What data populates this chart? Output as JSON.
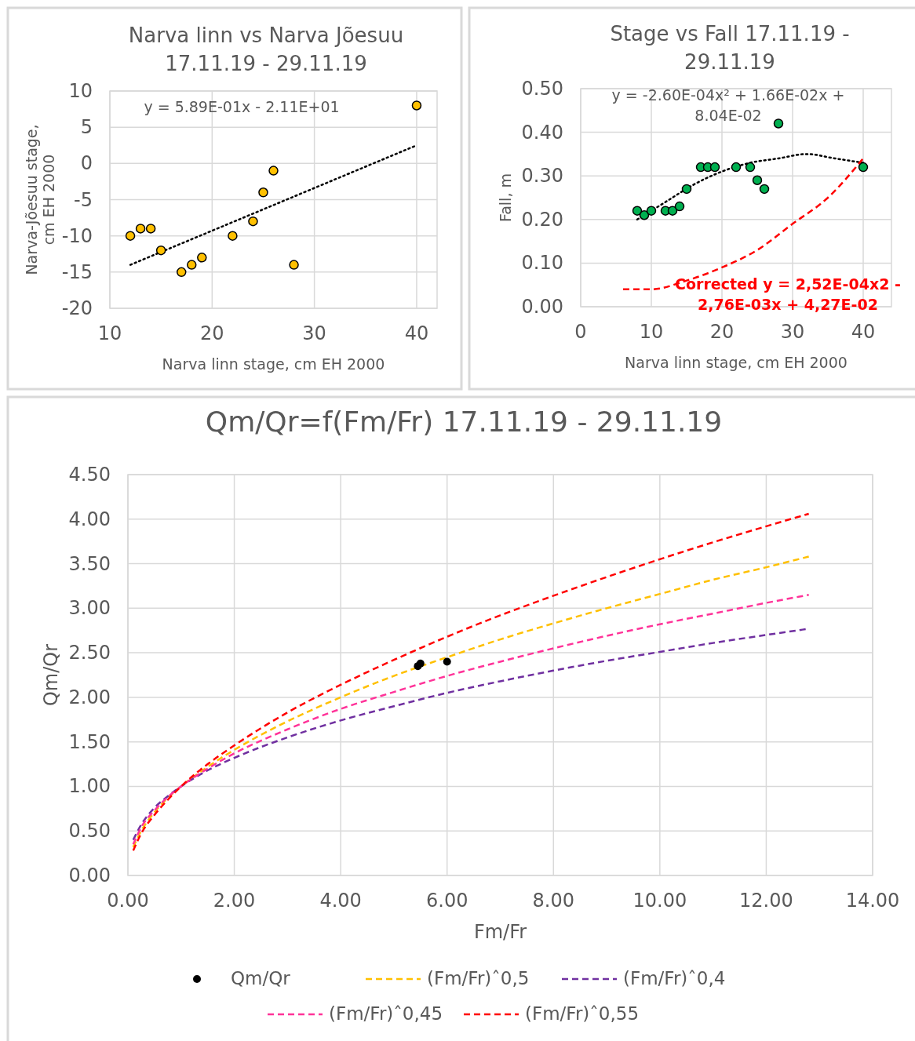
{
  "chart_data": [
    {
      "type": "scatter",
      "title": "Narva linn vs Narva Jõesuu 17.11.19 - 29.11.19",
      "xlabel": "Narva linn stage, cm EH 2000",
      "ylabel": "Narva-Jõesuu stage, cm EH 2000",
      "xlim": [
        10,
        42
      ],
      "xticks": [
        10,
        20,
        30,
        40
      ],
      "ylim": [
        -20,
        10
      ],
      "yticks": [
        -20,
        -15,
        -10,
        -5,
        0,
        5,
        10
      ],
      "grid": true,
      "annotations": [
        "y = 5.89E-01x - 2.11E+01"
      ],
      "series": [
        {
          "color": "#ffc000",
          "marker": "circle",
          "x": [
            12,
            13,
            14,
            15,
            17,
            18,
            19,
            22,
            24,
            25,
            26,
            28,
            40
          ],
          "values": [
            -10,
            -9,
            -9,
            -12,
            -15,
            -14,
            -13,
            -10,
            -8,
            -4,
            -1,
            -14,
            8
          ]
        },
        {
          "type": "line",
          "color": "#000000",
          "line_style": "dotted",
          "x": [
            12,
            40
          ],
          "values": [
            -14,
            2.5
          ]
        }
      ]
    },
    {
      "type": "scatter",
      "title": "Stage vs Fall 17.11.19 - 29.11.19",
      "xlabel": "Narva linn stage, cm EH 2000",
      "ylabel": "Fall, m",
      "xlim": [
        0,
        44
      ],
      "xticks": [
        0,
        10,
        20,
        30,
        40
      ],
      "ylim": [
        0,
        0.5
      ],
      "yticks": [
        {
          "value": 0,
          "label": "0.00"
        },
        {
          "value": 0.1,
          "label": "0.10"
        },
        {
          "value": 0.2,
          "label": "0.20"
        },
        {
          "value": 0.3,
          "label": "0.30"
        },
        {
          "value": 0.4,
          "label": "0.40"
        },
        {
          "value": 0.5,
          "label": "0.50"
        }
      ],
      "grid": true,
      "annotations": [
        "y = -2.60E-04x² + 1.66E-02x + 8.04E-02",
        "Corrected y = 2,52E-04x2 - 2,76E-03x + 4,27E-02"
      ],
      "series": [
        {
          "color": "#00b050",
          "marker": "circle",
          "x": [
            8,
            9,
            10,
            12,
            13,
            14,
            15,
            17,
            18,
            19,
            22,
            24,
            25,
            26,
            28,
            40
          ],
          "values": [
            0.22,
            0.21,
            0.22,
            0.22,
            0.22,
            0.23,
            0.27,
            0.32,
            0.32,
            0.32,
            0.32,
            0.32,
            0.29,
            0.27,
            0.42,
            0.32
          ]
        },
        {
          "type": "line",
          "color": "#000000",
          "line_style": "dotted",
          "x": [
            8,
            12,
            16,
            20,
            24,
            28,
            32,
            36,
            40
          ],
          "values": [
            0.2,
            0.24,
            0.28,
            0.31,
            0.33,
            0.34,
            0.35,
            0.34,
            0.33
          ]
        },
        {
          "type": "line",
          "color": "#ff0000",
          "line_style": "dashed",
          "x": [
            6,
            10,
            15,
            20,
            25,
            30,
            35,
            40
          ],
          "values": [
            0.04,
            0.04,
            0.06,
            0.09,
            0.13,
            0.19,
            0.25,
            0.34
          ]
        }
      ]
    },
    {
      "type": "scatter",
      "title": "Qm/Qr=f(Fm/Fr) 17.11.19 - 29.11.19",
      "xlabel": "Fm/Fr",
      "ylabel": "Qm/Qr",
      "xlim": [
        0,
        14
      ],
      "xticks": [
        {
          "value": 0,
          "label": "0.00"
        },
        {
          "value": 2,
          "label": "2.00"
        },
        {
          "value": 4,
          "label": "4.00"
        },
        {
          "value": 6,
          "label": "6.00"
        },
        {
          "value": 8,
          "label": "8.00"
        },
        {
          "value": 10,
          "label": "10.00"
        },
        {
          "value": 12,
          "label": "12.00"
        },
        {
          "value": 14,
          "label": "14.00"
        }
      ],
      "ylim": [
        0,
        4.5
      ],
      "yticks": [
        {
          "value": 0,
          "label": "0.00"
        },
        {
          "value": 0.5,
          "label": "0.50"
        },
        {
          "value": 1,
          "label": "1.00"
        },
        {
          "value": 1.5,
          "label": "1.50"
        },
        {
          "value": 2,
          "label": "2.00"
        },
        {
          "value": 2.5,
          "label": "2.50"
        },
        {
          "value": 3,
          "label": "3.00"
        },
        {
          "value": 3.5,
          "label": "3.50"
        },
        {
          "value": 4,
          "label": "4.00"
        },
        {
          "value": 4.5,
          "label": "4.50"
        }
      ],
      "grid": true,
      "legend": "bottom",
      "series": [
        {
          "name": "Qm/Qr",
          "color": "#000000",
          "marker": "circle",
          "x": [
            5.45,
            5.5,
            6.0
          ],
          "values": [
            2.35,
            2.38,
            2.4
          ]
        },
        {
          "type": "line",
          "name": "(Fm/Fr)ˆ0,5",
          "color": "#ffc000",
          "line_style": "dashed",
          "x": [
            0.1,
            0.25,
            0.5,
            0.75,
            1,
            1.5,
            2,
            3,
            4,
            5,
            6,
            7,
            8,
            9,
            10,
            11,
            12,
            12.8
          ],
          "values": [
            0.32,
            0.5,
            0.71,
            0.87,
            1,
            1.22,
            1.41,
            1.73,
            2,
            2.24,
            2.45,
            2.65,
            2.83,
            3,
            3.16,
            3.32,
            3.46,
            3.58
          ]
        },
        {
          "type": "line",
          "name": "(Fm/Fr)ˆ0,4",
          "color": "#7030a0",
          "line_style": "dashed",
          "x": [
            0.1,
            0.25,
            0.5,
            0.75,
            1,
            1.5,
            2,
            3,
            4,
            5,
            6,
            7,
            8,
            9,
            10,
            11,
            12,
            12.8
          ],
          "values": [
            0.4,
            0.57,
            0.76,
            0.89,
            1,
            1.18,
            1.32,
            1.55,
            1.74,
            1.9,
            2.05,
            2.18,
            2.3,
            2.41,
            2.51,
            2.61,
            2.7,
            2.77
          ]
        },
        {
          "type": "line",
          "name": "(Fm/Fr)ˆ0,45",
          "color": "#ff3399",
          "line_style": "dashed",
          "x": [
            0.1,
            0.25,
            0.5,
            0.75,
            1,
            1.5,
            2,
            3,
            4,
            5,
            6,
            7,
            8,
            9,
            10,
            11,
            12,
            12.8
          ],
          "values": [
            0.35,
            0.54,
            0.73,
            0.88,
            1,
            1.2,
            1.37,
            1.64,
            1.87,
            2.06,
            2.24,
            2.4,
            2.55,
            2.69,
            2.82,
            2.94,
            3.06,
            3.15
          ]
        },
        {
          "type": "line",
          "name": "(Fm/Fr)ˆ0,55",
          "color": "#ff0000",
          "line_style": "dashed",
          "x": [
            0.1,
            0.25,
            0.5,
            0.75,
            1,
            1.5,
            2,
            3,
            4,
            5,
            6,
            7,
            8,
            9,
            10,
            11,
            12,
            12.8
          ],
          "values": [
            0.28,
            0.47,
            0.68,
            0.85,
            1,
            1.25,
            1.46,
            1.83,
            2.14,
            2.42,
            2.68,
            2.92,
            3.14,
            3.35,
            3.55,
            3.74,
            3.92,
            4.06
          ]
        }
      ]
    }
  ]
}
